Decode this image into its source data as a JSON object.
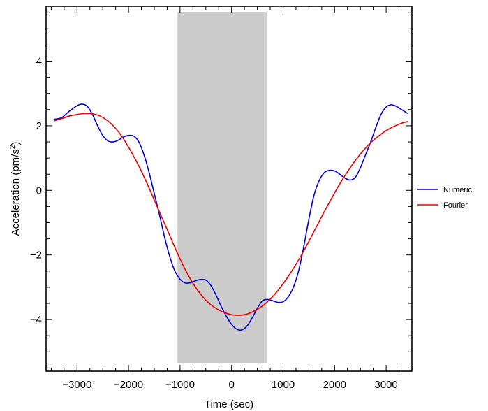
{
  "chart_data": {
    "type": "line",
    "xlabel": "Time (sec)",
    "ylabel_main": "Acceleration (pm/s",
    "ylabel_sup": "2",
    "ylabel_end": ")",
    "xlim": [
      -3600,
      3500
    ],
    "ylim": [
      -5.6,
      5.7
    ],
    "xticks": [
      -3000,
      -2000,
      -1000,
      0,
      1000,
      2000,
      3000
    ],
    "xtick_labels": [
      "−3000",
      "−2000",
      "−1000",
      "0",
      "1000",
      "2000",
      "3000"
    ],
    "yticks": [
      -4,
      -2,
      0,
      2,
      4
    ],
    "ytick_labels": [
      "−4",
      "−2",
      "0",
      "2",
      "4"
    ],
    "shaded_region": {
      "x": [
        -1050,
        680
      ],
      "color": "#cccccc"
    },
    "legend_position": "right",
    "series": [
      {
        "name": "Numeric",
        "color": "#0000dd",
        "x": [
          -3450,
          -3300,
          -3150,
          -3000,
          -2900,
          -2800,
          -2700,
          -2600,
          -2500,
          -2400,
          -2300,
          -2200,
          -2100,
          -2000,
          -1900,
          -1800,
          -1700,
          -1600,
          -1500,
          -1400,
          -1300,
          -1200,
          -1100,
          -1000,
          -900,
          -800,
          -700,
          -600,
          -500,
          -400,
          -300,
          -200,
          -100,
          0,
          100,
          200,
          300,
          400,
          500,
          600,
          700,
          800,
          900,
          1000,
          1100,
          1200,
          1300,
          1400,
          1500,
          1600,
          1700,
          1800,
          1900,
          2000,
          2100,
          2200,
          2300,
          2400,
          2500,
          2600,
          2700,
          2800,
          2900,
          3000,
          3100,
          3200,
          3300,
          3420
        ],
        "y": [
          2.2,
          2.25,
          2.45,
          2.62,
          2.67,
          2.6,
          2.35,
          2.0,
          1.7,
          1.53,
          1.5,
          1.55,
          1.65,
          1.7,
          1.68,
          1.5,
          1.1,
          0.55,
          -0.1,
          -0.75,
          -1.45,
          -2.05,
          -2.5,
          -2.75,
          -2.87,
          -2.86,
          -2.8,
          -2.76,
          -2.78,
          -2.95,
          -3.25,
          -3.6,
          -3.9,
          -4.15,
          -4.3,
          -4.32,
          -4.2,
          -3.95,
          -3.65,
          -3.42,
          -3.38,
          -3.42,
          -3.47,
          -3.45,
          -3.3,
          -3.0,
          -2.5,
          -1.75,
          -0.9,
          -0.15,
          0.3,
          0.55,
          0.62,
          0.6,
          0.5,
          0.38,
          0.32,
          0.4,
          0.7,
          1.1,
          1.5,
          1.95,
          2.35,
          2.58,
          2.65,
          2.6,
          2.5,
          2.38
        ]
      },
      {
        "name": "Fourier",
        "color": "#ee0000",
        "x": [
          -3450,
          -3300,
          -3150,
          -3000,
          -2850,
          -2700,
          -2550,
          -2400,
          -2250,
          -2100,
          -1950,
          -1800,
          -1650,
          -1500,
          -1350,
          -1200,
          -1050,
          -900,
          -750,
          -600,
          -450,
          -300,
          -150,
          0,
          150,
          300,
          450,
          600,
          750,
          900,
          1050,
          1200,
          1350,
          1500,
          1650,
          1800,
          1950,
          2100,
          2250,
          2400,
          2550,
          2700,
          2850,
          3000,
          3150,
          3300,
          3420
        ],
        "y": [
          2.15,
          2.22,
          2.3,
          2.35,
          2.38,
          2.37,
          2.3,
          2.15,
          1.92,
          1.6,
          1.2,
          0.75,
          0.25,
          -0.3,
          -0.85,
          -1.4,
          -1.95,
          -2.45,
          -2.88,
          -3.22,
          -3.48,
          -3.66,
          -3.78,
          -3.85,
          -3.87,
          -3.83,
          -3.73,
          -3.58,
          -3.37,
          -3.1,
          -2.78,
          -2.42,
          -2.02,
          -1.58,
          -1.12,
          -0.66,
          -0.22,
          0.2,
          0.58,
          0.92,
          1.22,
          1.48,
          1.68,
          1.85,
          1.98,
          2.08,
          2.13
        ]
      }
    ]
  }
}
